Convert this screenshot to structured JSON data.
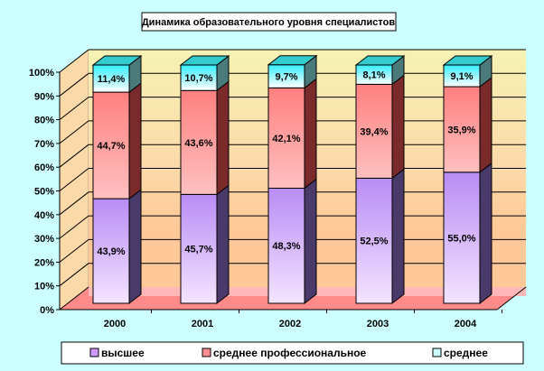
{
  "chart_data": {
    "type": "bar",
    "stacked": true,
    "title": "Динамика образовательного уровня специалистов",
    "categories": [
      "2000",
      "2001",
      "2002",
      "2003",
      "2004"
    ],
    "series": [
      {
        "name": "высшее",
        "values": [
          43.9,
          45.7,
          48.3,
          52.5,
          55.0
        ],
        "labels": [
          "43,9%",
          "45,7%",
          "48,3%",
          "52,5%",
          "55,0%"
        ],
        "color": "#cc99ff"
      },
      {
        "name": "среднее профессиональное",
        "values": [
          44.7,
          43.6,
          42.1,
          39.4,
          35.9
        ],
        "labels": [
          "44,7%",
          "43,6%",
          "42,1%",
          "39,4%",
          "35,9%"
        ],
        "color": "#ff8080"
      },
      {
        "name": "среднее",
        "values": [
          11.4,
          10.7,
          9.7,
          8.1,
          9.1
        ],
        "labels": [
          "11,4%",
          "10,7%",
          "9,7%",
          "8,1%",
          "9,1%"
        ],
        "color": "#ccffff"
      }
    ],
    "yticks": [
      "0%",
      "10%",
      "20%",
      "30%",
      "40%",
      "50%",
      "60%",
      "70%",
      "80%",
      "90%",
      "100%"
    ],
    "ylim": [
      0,
      100
    ],
    "grid": true,
    "legend_position": "bottom"
  }
}
